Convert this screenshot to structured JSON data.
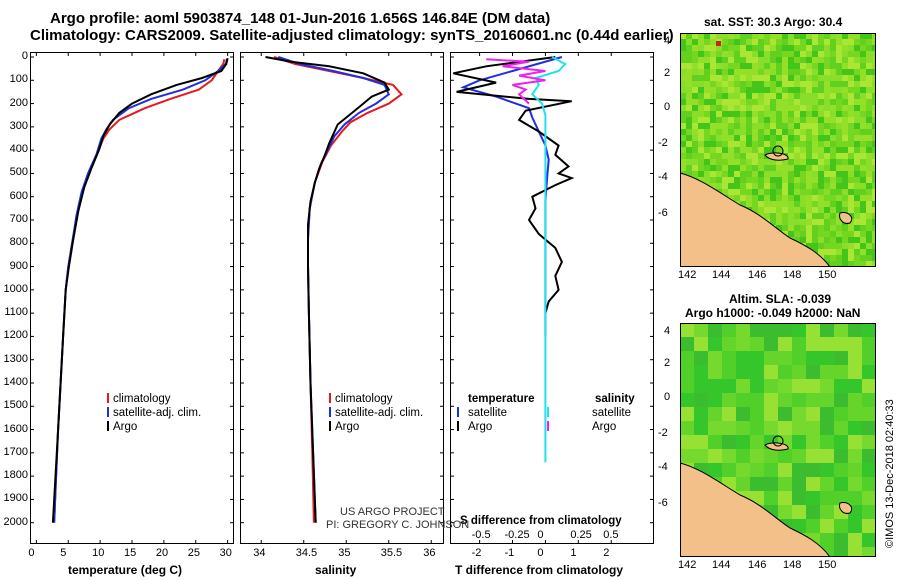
{
  "title_line1": "Argo profile: aoml 5903874_148 01-Jun-2016 1.656S 146.84E (DM data)",
  "title_line2": "Climatology: CARS2009. Satellite-adjusted climatology: synTS_20160601.nc (0.44d earlier)",
  "credit_line1": "US ARGO PROJECT",
  "credit_line2": "PI: GREGORY C. JOHNSON",
  "imos_stamp": "©IMOS 13-Dec-2018 02:40:33",
  "colors": {
    "climatology": "#e41a1c",
    "satellite": "#1f2fe0",
    "argo": "#000000",
    "cyan": "#22e0f0",
    "magenta": "#ee22ee"
  },
  "depth_axis": {
    "ticks": [
      "0",
      "100",
      "200",
      "300",
      "400",
      "500",
      "600",
      "700",
      "800",
      "900",
      "1000",
      "1100",
      "1200",
      "1300",
      "1400",
      "1500",
      "1600",
      "1700",
      "1800",
      "1900",
      "2000"
    ]
  },
  "chart_data": [
    {
      "type": "line",
      "title": "",
      "xlabel": "temperature (deg C)",
      "ylabel": "",
      "xlim": [
        -1,
        31
      ],
      "ylim": [
        2070,
        0
      ],
      "xticks": [
        "0",
        "5",
        "10",
        "15",
        "20",
        "25",
        "30"
      ],
      "legend": [
        "climatology",
        "satellite-adj. clim.",
        "Argo"
      ],
      "legend_position": "lower-right",
      "series": [
        {
          "name": "climatology",
          "color": "#e41a1c",
          "points": [
            [
              29.5,
              10
            ],
            [
              29.3,
              30
            ],
            [
              28.5,
              60
            ],
            [
              27.5,
              100
            ],
            [
              25.5,
              140
            ],
            [
              21,
              180
            ],
            [
              17,
              220
            ],
            [
              13,
              270
            ],
            [
              11.5,
              310
            ],
            [
              10.5,
              350
            ],
            [
              9.5,
              420
            ],
            [
              8.2,
              500
            ],
            [
              7.2,
              580
            ],
            [
              6.4,
              680
            ],
            [
              5.6,
              800
            ],
            [
              5,
              900
            ],
            [
              4.6,
              1000
            ],
            [
              4.2,
              1200
            ],
            [
              3.8,
              1400
            ],
            [
              3.4,
              1600
            ],
            [
              3.1,
              1800
            ],
            [
              2.8,
              2000
            ]
          ]
        },
        {
          "name": "satellite-adj. clim.",
          "color": "#1f2fe0",
          "points": [
            [
              29.9,
              10
            ],
            [
              29.7,
              30
            ],
            [
              28.5,
              60
            ],
            [
              26.5,
              100
            ],
            [
              23,
              140
            ],
            [
              18,
              180
            ],
            [
              14.5,
              220
            ],
            [
              12,
              270
            ],
            [
              11,
              310
            ],
            [
              10.2,
              350
            ],
            [
              9.4,
              420
            ],
            [
              8.1,
              500
            ],
            [
              7.1,
              580
            ],
            [
              6.3,
              680
            ],
            [
              5.6,
              800
            ],
            [
              5,
              900
            ],
            [
              4.6,
              1000
            ],
            [
              4.2,
              1200
            ],
            [
              3.8,
              1400
            ],
            [
              3.4,
              1600
            ],
            [
              3.1,
              1800
            ],
            [
              2.8,
              2000
            ]
          ]
        },
        {
          "name": "Argo",
          "color": "#000000",
          "points": [
            [
              30,
              5
            ],
            [
              29.8,
              30
            ],
            [
              29,
              60
            ],
            [
              26,
              90
            ],
            [
              22,
              120
            ],
            [
              18,
              160
            ],
            [
              15,
              200
            ],
            [
              13,
              240
            ],
            [
              11.5,
              290
            ],
            [
              10.5,
              340
            ],
            [
              9.8,
              400
            ],
            [
              8.6,
              480
            ],
            [
              7.5,
              560
            ],
            [
              6.6,
              660
            ],
            [
              5.8,
              780
            ],
            [
              5.1,
              900
            ],
            [
              4.6,
              1000
            ],
            [
              4.2,
              1200
            ],
            [
              3.8,
              1400
            ],
            [
              3.4,
              1600
            ],
            [
              3,
              1800
            ],
            [
              2.6,
              2000
            ]
          ]
        }
      ]
    },
    {
      "type": "line",
      "title": "",
      "xlabel": "salinity",
      "ylabel": "",
      "xlim": [
        33.75,
        36.15
      ],
      "ylim": [
        2070,
        0
      ],
      "xticks": [
        "34",
        "34.5",
        "35",
        "35.5",
        "36"
      ],
      "legend": [
        "climatology",
        "satellite-adj. clim.",
        "Argo"
      ],
      "legend_position": "lower-right",
      "series": [
        {
          "name": "climatology",
          "color": "#e41a1c",
          "points": [
            [
              34.15,
              0
            ],
            [
              34.4,
              30
            ],
            [
              34.8,
              60
            ],
            [
              35.2,
              90
            ],
            [
              35.55,
              120
            ],
            [
              35.65,
              160
            ],
            [
              35.5,
              200
            ],
            [
              35.25,
              240
            ],
            [
              35.05,
              280
            ],
            [
              34.95,
              320
            ],
            [
              34.82,
              380
            ],
            [
              34.72,
              450
            ],
            [
              34.63,
              540
            ],
            [
              34.57,
              650
            ],
            [
              34.55,
              780
            ],
            [
              34.55,
              900
            ],
            [
              34.56,
              1100
            ],
            [
              34.58,
              1400
            ],
            [
              34.6,
              1700
            ],
            [
              34.62,
              2000
            ]
          ]
        },
        {
          "name": "satellite-adj. clim.",
          "color": "#1f2fe0",
          "points": [
            [
              34.2,
              0
            ],
            [
              34.45,
              30
            ],
            [
              34.85,
              60
            ],
            [
              35.2,
              90
            ],
            [
              35.45,
              120
            ],
            [
              35.5,
              160
            ],
            [
              35.35,
              200
            ],
            [
              35.15,
              240
            ],
            [
              34.98,
              290
            ],
            [
              34.86,
              340
            ],
            [
              34.78,
              400
            ],
            [
              34.7,
              460
            ],
            [
              34.63,
              540
            ],
            [
              34.57,
              650
            ],
            [
              34.55,
              780
            ],
            [
              34.55,
              900
            ],
            [
              34.56,
              1100
            ],
            [
              34.58,
              1400
            ],
            [
              34.61,
              1700
            ],
            [
              34.64,
              2000
            ]
          ]
        },
        {
          "name": "Argo",
          "color": "#000000",
          "points": [
            [
              34.05,
              0
            ],
            [
              34.35,
              20
            ],
            [
              34.8,
              40
            ],
            [
              35.2,
              70
            ],
            [
              35.45,
              110
            ],
            [
              35.5,
              140
            ],
            [
              35.3,
              170
            ],
            [
              35.2,
              200
            ],
            [
              35.1,
              230
            ],
            [
              35.0,
              260
            ],
            [
              34.9,
              290
            ],
            [
              34.85,
              330
            ],
            [
              34.8,
              370
            ],
            [
              34.75,
              420
            ],
            [
              34.68,
              480
            ],
            [
              34.63,
              540
            ],
            [
              34.58,
              620
            ],
            [
              34.55,
              720
            ],
            [
              34.55,
              900
            ],
            [
              34.56,
              1100
            ],
            [
              34.58,
              1400
            ],
            [
              34.61,
              1700
            ],
            [
              34.64,
              2000
            ]
          ]
        }
      ]
    },
    {
      "type": "line",
      "title": "",
      "xlabel": "T difference from climatology",
      "xlabel_top": "S difference from climatology",
      "ylabel": "",
      "xlim": [
        -2.9,
        3.3
      ],
      "ylim": [
        2070,
        0
      ],
      "xticks": [
        "-2",
        "-1",
        "0",
        "1",
        "2"
      ],
      "xticks_top": [
        "-0.5",
        "-0.25",
        "0",
        "0.25",
        "0.5"
      ],
      "legend_left_title": "temperature",
      "legend_right_title": "salinity",
      "legend_left": [
        "satellite",
        "Argo"
      ],
      "legend_right": [
        "satellite",
        "Argo"
      ],
      "legend_position": "lower-center",
      "series": [
        {
          "name": "T satellite",
          "color": "#1f2fe0",
          "points": [
            [
              0.5,
              0
            ],
            [
              -1,
              60
            ],
            [
              -2,
              100
            ],
            [
              -2.5,
              130
            ],
            [
              -1.5,
              170
            ],
            [
              -0.5,
              220
            ],
            [
              -0.4,
              260
            ],
            [
              -0.2,
              320
            ],
            [
              0,
              380
            ],
            [
              0.1,
              440
            ],
            [
              0.05,
              520
            ],
            [
              0,
              620
            ],
            [
              0,
              800
            ],
            [
              0,
              1000
            ],
            [
              0,
              1200
            ]
          ]
        },
        {
          "name": "T Argo",
          "color": "#000000",
          "points": [
            [
              0.3,
              0
            ],
            [
              -1.8,
              40
            ],
            [
              -2.8,
              70
            ],
            [
              -1.5,
              110
            ],
            [
              -2.7,
              150
            ],
            [
              -0.5,
              180
            ],
            [
              0.8,
              190
            ],
            [
              -0.6,
              230
            ],
            [
              -0.8,
              270
            ],
            [
              -0.2,
              320
            ],
            [
              0.4,
              380
            ],
            [
              0.3,
              420
            ],
            [
              0.7,
              470
            ],
            [
              0.4,
              500
            ],
            [
              0.8,
              520
            ],
            [
              0.3,
              550
            ],
            [
              -0.4,
              600
            ],
            [
              -0.3,
              650
            ],
            [
              -0.5,
              700
            ],
            [
              -0.2,
              760
            ],
            [
              0.3,
              820
            ],
            [
              0.5,
              880
            ],
            [
              0.3,
              940
            ],
            [
              0.4,
              1000
            ],
            [
              0.1,
              1050
            ],
            [
              0,
              1100
            ]
          ]
        },
        {
          "name": "S satellite",
          "color": "#22e0f0",
          "points": [
            [
              0.2,
              0
            ],
            [
              0.6,
              30
            ],
            [
              0.4,
              60
            ],
            [
              -0.3,
              90
            ],
            [
              -0.2,
              120
            ],
            [
              -0.4,
              160
            ],
            [
              -0.1,
              200
            ],
            [
              0,
              250
            ],
            [
              0,
              300
            ],
            [
              0,
              400
            ],
            [
              0,
              600
            ],
            [
              0,
              800
            ],
            [
              0,
              1000
            ],
            [
              0,
              1200
            ],
            [
              0,
              1500
            ],
            [
              0,
              1700
            ],
            [
              0,
              1740
            ]
          ]
        },
        {
          "name": "S Argo",
          "color": "#ee22ee",
          "points": [
            [
              -1.8,
              10
            ],
            [
              -0.5,
              20
            ],
            [
              -1.3,
              40
            ],
            [
              0,
              60
            ],
            [
              -0.8,
              80
            ],
            [
              0,
              100
            ],
            [
              -1,
              120
            ],
            [
              -0.6,
              140
            ],
            [
              -0.8,
              160
            ],
            [
              -0.5,
              200
            ]
          ]
        }
      ]
    },
    {
      "type": "heatmap",
      "title": "sat. SST: 30.3 Argo: 30.4",
      "xticks": [
        "142",
        "144",
        "146",
        "148",
        "150"
      ],
      "yticks": [
        "4",
        "2",
        "0",
        "-2",
        "-4",
        "-6"
      ]
    },
    {
      "type": "heatmap",
      "title_line1": "Altim. SLA: -0.039",
      "title_line2": "Argo h1000: -0.049 h2000: NaN",
      "xticks": [
        "142",
        "144",
        "146",
        "148",
        "150"
      ],
      "yticks": [
        "4",
        "2",
        "0",
        "-2",
        "-4",
        "-6"
      ]
    }
  ]
}
